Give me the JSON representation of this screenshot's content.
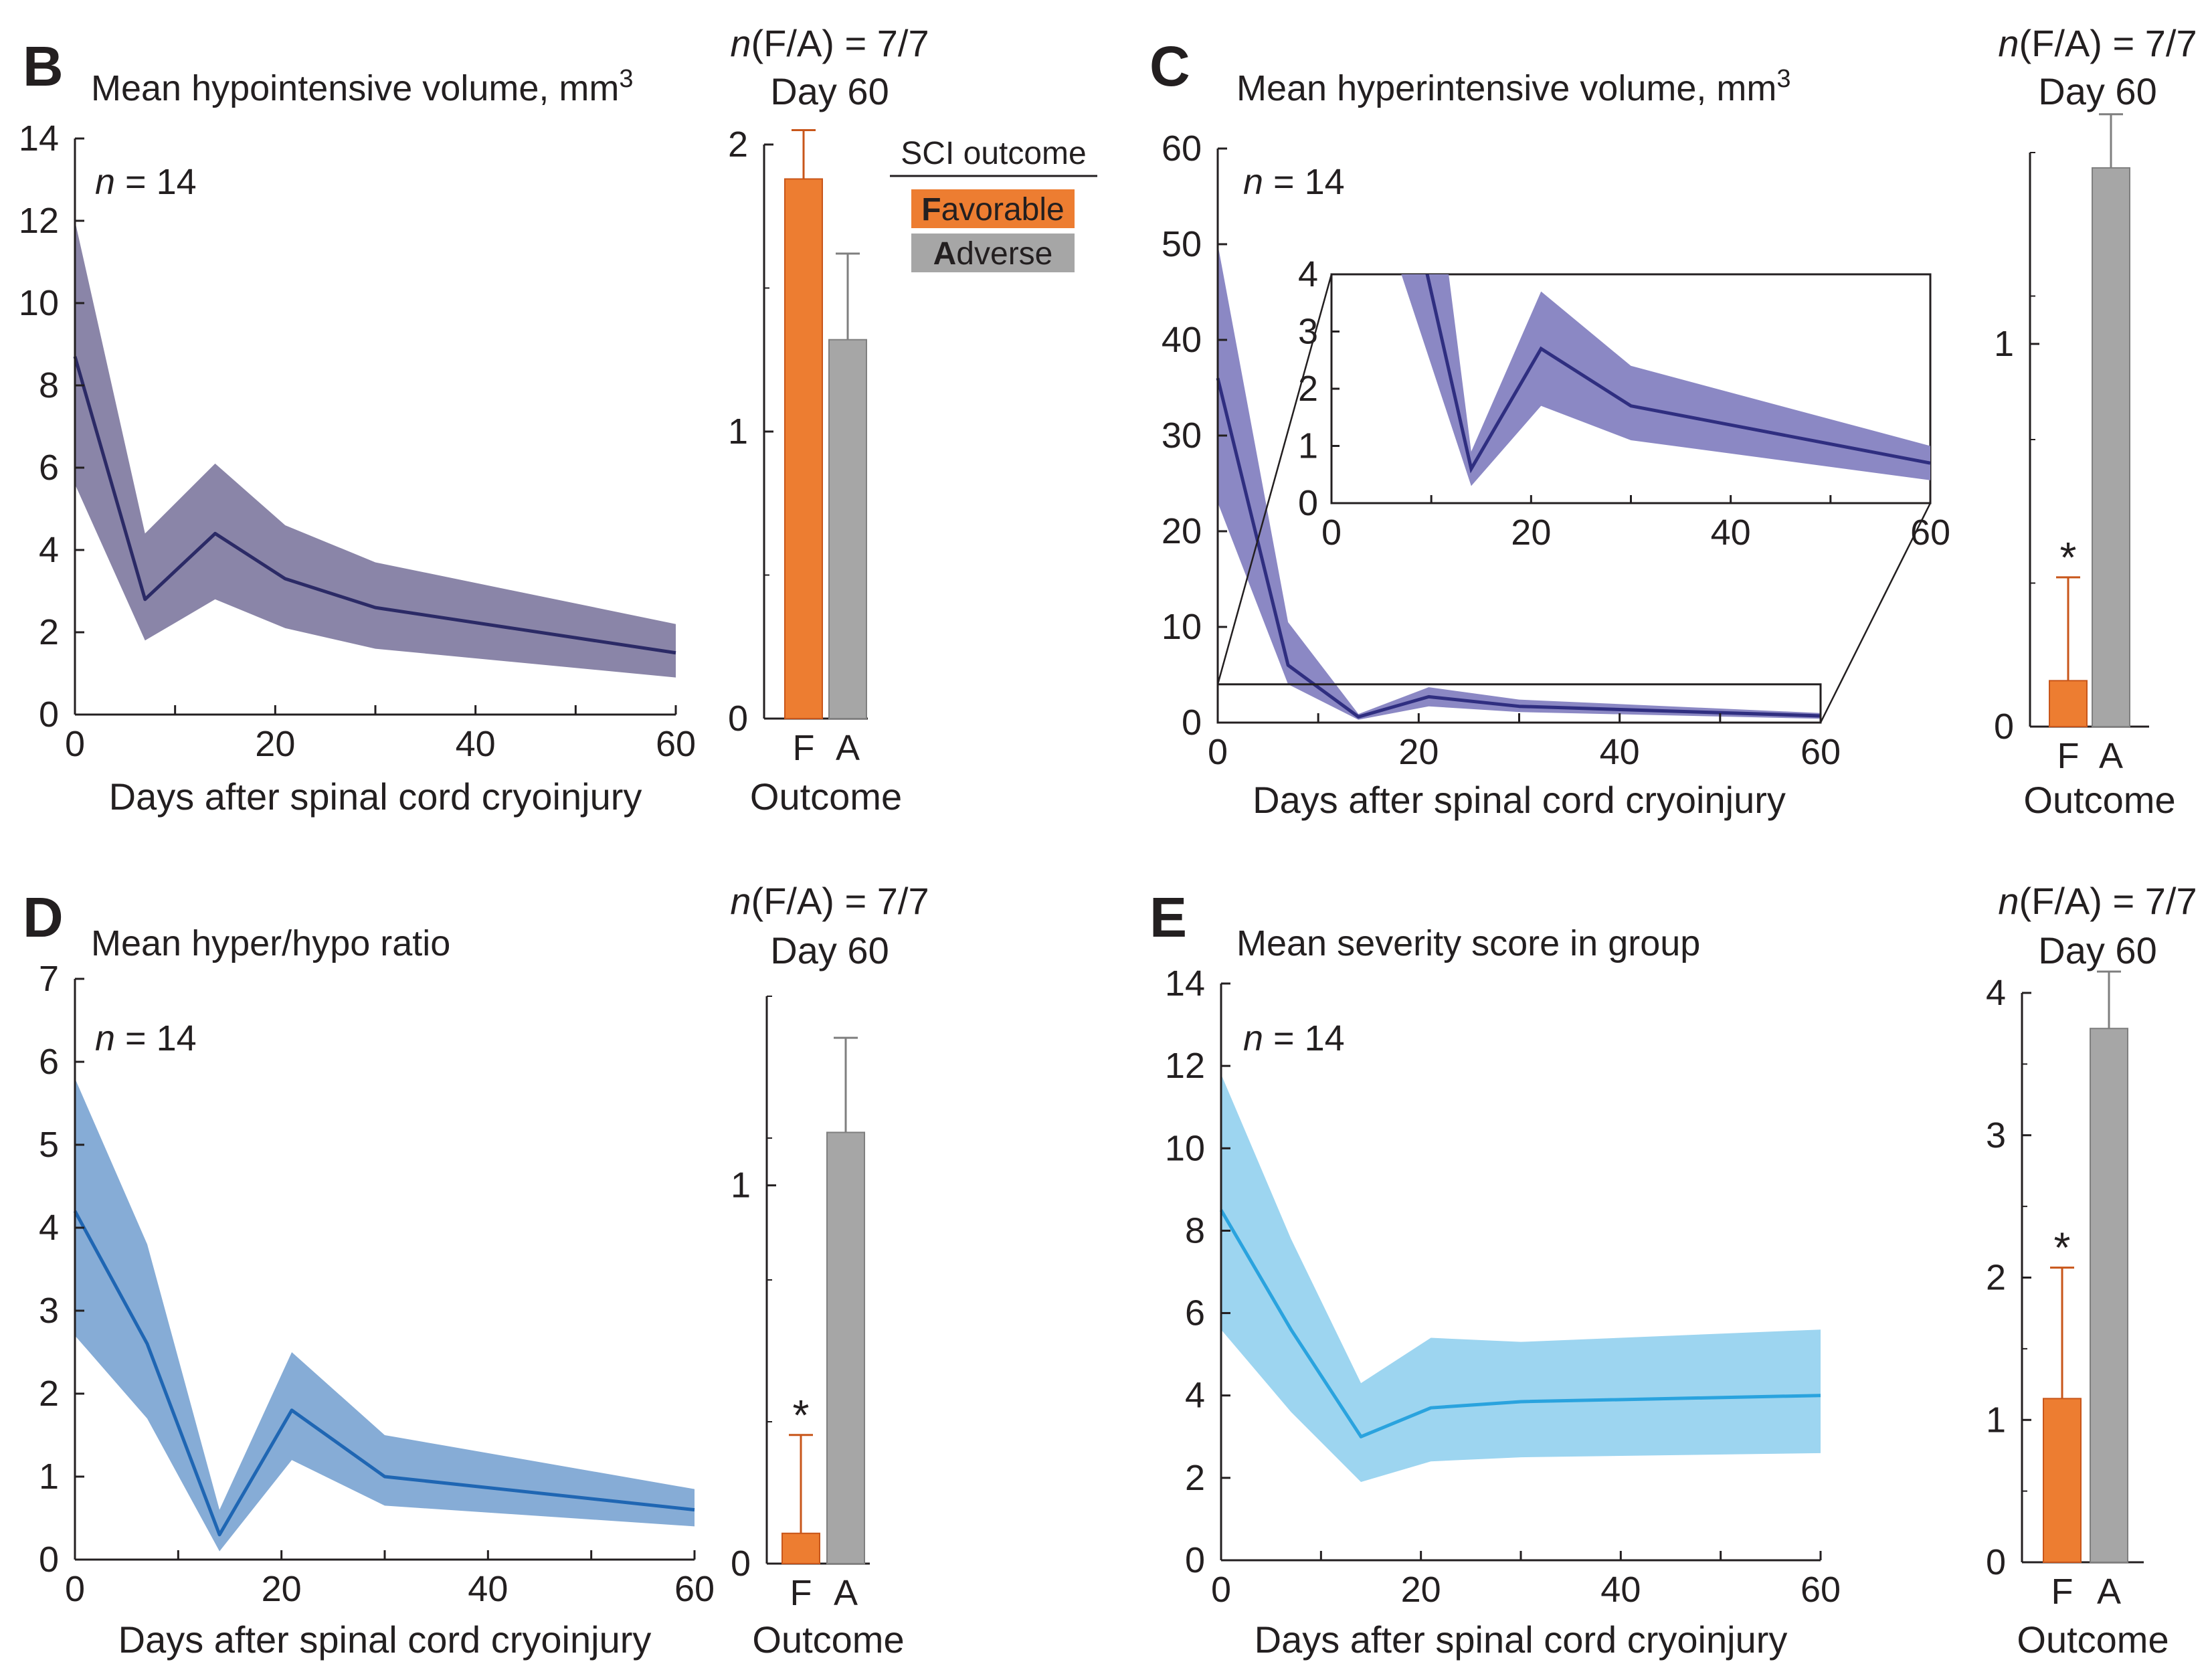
{
  "colors": {
    "favorable": "#ed7d31",
    "adverse": "#a6a6a6",
    "purple_line": "#2b2a66",
    "purple_band": "#8a85a8",
    "c_line": "#2f2e80",
    "c_band": "#8b88c4",
    "d_line": "#1f66b3",
    "d_band": "#86acd6",
    "e_line": "#2aa3de",
    "e_band": "#9dd5f0"
  },
  "legend": {
    "title": "SCI outcome",
    "favorable_bold": "F",
    "favorable_rest": "avorable",
    "adverse_bold": "A",
    "adverse_rest": "dverse"
  },
  "chart_data": [
    {
      "id": "B",
      "type": "area",
      "panel": "B",
      "title": "Mean hypointensive volume, mm",
      "title_sup": "3",
      "n_label": "= 14",
      "xlabel": "Days after spinal cord cryoinjury",
      "xlim": [
        0,
        60
      ],
      "ylim": [
        0,
        14
      ],
      "xticks": [
        0,
        20,
        40,
        60
      ],
      "yticks": [
        0,
        2,
        4,
        6,
        8,
        10,
        12,
        14
      ],
      "x": [
        0,
        7,
        14,
        21,
        30,
        60
      ],
      "mean": [
        8.7,
        2.8,
        4.4,
        3.3,
        2.6,
        1.5
      ],
      "upper": [
        12.0,
        4.4,
        6.1,
        4.6,
        3.7,
        2.2
      ],
      "lower": [
        5.6,
        1.8,
        2.8,
        2.1,
        1.6,
        0.9
      ],
      "bar": {
        "header_n": "n",
        "header_rest": "(F/A) = 7/7",
        "header_day": "Day 60",
        "categories": [
          "F",
          "A"
        ],
        "values": [
          1.88,
          1.32
        ],
        "errors": [
          0.17,
          0.3
        ],
        "significant": [
          false,
          false
        ],
        "ylim": [
          0,
          2.0
        ],
        "yticks": [
          0,
          1,
          2
        ],
        "xlabel": "Outcome"
      }
    },
    {
      "id": "C",
      "type": "area",
      "panel": "C",
      "title": "Mean hyperintensive volume, mm",
      "title_sup": "3",
      "n_label": "= 14",
      "xlabel": "Days after spinal cord cryoinjury",
      "xlim": [
        0,
        60
      ],
      "ylim": [
        0,
        60
      ],
      "xticks": [
        0,
        20,
        40,
        60
      ],
      "yticks": [
        0,
        10,
        20,
        30,
        40,
        50,
        60
      ],
      "x": [
        0,
        7,
        14,
        21,
        30,
        60
      ],
      "mean": [
        36.0,
        6.0,
        0.6,
        2.7,
        1.7,
        0.7
      ],
      "upper": [
        50.0,
        10.5,
        0.9,
        3.7,
        2.4,
        1.0
      ],
      "lower": [
        23.0,
        4.0,
        0.3,
        1.7,
        1.1,
        0.4
      ],
      "inset": {
        "xlim": [
          0,
          60
        ],
        "ylim": [
          0,
          4
        ],
        "xticks": [
          0,
          20,
          40,
          60
        ],
        "yticks": [
          0,
          1,
          2,
          3,
          4
        ],
        "box_ylim": [
          0,
          4
        ]
      },
      "bar": {
        "header_n": "n",
        "header_rest": "(F/A) = 7/7",
        "header_day": "Day 60",
        "categories": [
          "F",
          "A"
        ],
        "values": [
          0.12,
          1.46
        ],
        "errors": [
          0.27,
          0.14
        ],
        "significant": [
          true,
          false
        ],
        "ylim": [
          0,
          1.5
        ],
        "yticks": [
          0,
          1
        ],
        "xlabel": "Outcome"
      }
    },
    {
      "id": "D",
      "type": "area",
      "panel": "D",
      "title": "Mean hyper/hypo ratio",
      "title_sup": "",
      "n_label": "= 14",
      "xlabel": "Days after spinal cord cryoinjury",
      "xlim": [
        0,
        60
      ],
      "ylim": [
        0,
        7
      ],
      "xticks": [
        0,
        20,
        40,
        60
      ],
      "yticks": [
        0,
        1,
        2,
        3,
        4,
        5,
        6,
        7
      ],
      "x": [
        0,
        7,
        14,
        21,
        30,
        60
      ],
      "mean": [
        4.2,
        2.6,
        0.3,
        1.8,
        1.0,
        0.6
      ],
      "upper": [
        5.8,
        3.8,
        0.6,
        2.5,
        1.5,
        0.85
      ],
      "lower": [
        2.7,
        1.7,
        0.1,
        1.2,
        0.65,
        0.4
      ],
      "bar": {
        "header_n": "n",
        "header_rest": "(F/A) = 7/7",
        "header_day": "Day 60",
        "categories": [
          "F",
          "A"
        ],
        "values": [
          0.08,
          1.14
        ],
        "errors": [
          0.26,
          0.25
        ],
        "significant": [
          true,
          false
        ],
        "ylim": [
          0,
          1.5
        ],
        "yticks": [
          0,
          1
        ],
        "xlabel": "Outcome"
      }
    },
    {
      "id": "E",
      "type": "area",
      "panel": "E",
      "title": "Mean severity score in group",
      "title_sup": "",
      "n_label": "= 14",
      "xlabel": "Days after spinal cord cryoinjury",
      "xlim": [
        0,
        60
      ],
      "ylim": [
        0,
        14
      ],
      "xticks": [
        0,
        20,
        40,
        60
      ],
      "yticks": [
        0,
        2,
        4,
        6,
        8,
        10,
        12,
        14
      ],
      "x": [
        0,
        7,
        14,
        21,
        30,
        60
      ],
      "mean": [
        8.5,
        5.6,
        3.0,
        3.7,
        3.85,
        4.0
      ],
      "upper": [
        11.8,
        7.8,
        4.3,
        5.4,
        5.3,
        5.6
      ],
      "lower": [
        5.6,
        3.6,
        1.9,
        2.4,
        2.5,
        2.6
      ],
      "bar": {
        "header_n": "n",
        "header_rest": "(F/A) = 7/7",
        "header_day": "Day 60",
        "categories": [
          "F",
          "A"
        ],
        "values": [
          1.15,
          3.75
        ],
        "errors": [
          0.92,
          0.4
        ],
        "significant": [
          true,
          false
        ],
        "ylim": [
          0,
          4
        ],
        "yticks": [
          0,
          1,
          2,
          3,
          4
        ],
        "xlabel": "Outcome"
      }
    }
  ]
}
